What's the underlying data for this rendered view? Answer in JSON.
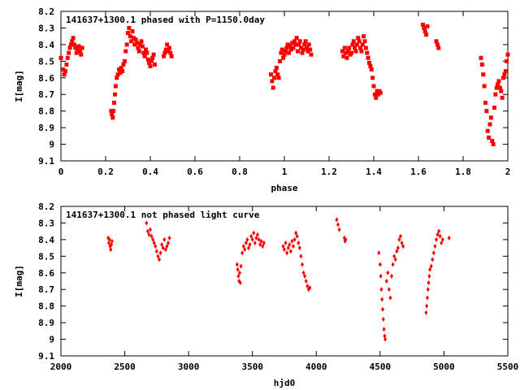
{
  "chart_data": [
    {
      "type": "scatter",
      "title": "141637+1300.1 phased with P=1150.0day",
      "xlabel": "phase",
      "ylabel": "I[mag]",
      "xlim": [
        0,
        2
      ],
      "ylim": [
        8.2,
        9.1
      ],
      "y_inverted": true,
      "xticks": [
        "0",
        "0.2",
        "0.4",
        "0.6",
        "0.8",
        "1",
        "1.2",
        "1.4",
        "1.6",
        "1.8",
        "2"
      ],
      "yticks": [
        "8.2",
        "8.3",
        "8.4",
        "8.5",
        "8.6",
        "8.7",
        "8.8",
        "8.9",
        "9",
        "9.1"
      ],
      "marker": "square",
      "marker_color": "#ff0000",
      "grid": false,
      "x": [
        0.0,
        0.01,
        0.015,
        0.02,
        0.025,
        0.03,
        0.035,
        0.04,
        0.045,
        0.05,
        0.055,
        0.06,
        0.065,
        0.07,
        0.075,
        0.08,
        0.085,
        0.09,
        0.095,
        0.225,
        0.228,
        0.232,
        0.235,
        0.238,
        0.242,
        0.245,
        0.25,
        0.255,
        0.26,
        0.265,
        0.27,
        0.275,
        0.28,
        0.285,
        0.29,
        0.295,
        0.3,
        0.305,
        0.31,
        0.315,
        0.32,
        0.325,
        0.33,
        0.335,
        0.34,
        0.345,
        0.35,
        0.355,
        0.36,
        0.365,
        0.37,
        0.375,
        0.38,
        0.385,
        0.39,
        0.395,
        0.4,
        0.405,
        0.41,
        0.415,
        0.42,
        0.46,
        0.465,
        0.47,
        0.475,
        0.48,
        0.485,
        0.49,
        0.495,
        0.94,
        0.945,
        0.95,
        0.955,
        0.96,
        0.965,
        0.97,
        0.975,
        0.98,
        0.985,
        0.99,
        0.995,
        1.0,
        1.005,
        1.01,
        1.015,
        1.02,
        1.025,
        1.03,
        1.035,
        1.04,
        1.045,
        1.05,
        1.055,
        1.06,
        1.065,
        1.07,
        1.075,
        1.08,
        1.085,
        1.09,
        1.095,
        1.1,
        1.105,
        1.11,
        1.115,
        1.12,
        1.26,
        1.265,
        1.27,
        1.275,
        1.28,
        1.285,
        1.29,
        1.295,
        1.3,
        1.305,
        1.31,
        1.315,
        1.32,
        1.325,
        1.33,
        1.335,
        1.34,
        1.345,
        1.35,
        1.355,
        1.36,
        1.365,
        1.37,
        1.375,
        1.38,
        1.385,
        1.39,
        1.395,
        1.4,
        1.405,
        1.41,
        1.415,
        1.42,
        1.425,
        1.43,
        1.62,
        1.625,
        1.63,
        1.635,
        1.64,
        1.68,
        1.685,
        1.69,
        1.88,
        1.885,
        1.89,
        1.895,
        1.9,
        1.905,
        1.91,
        1.915,
        1.92,
        1.925,
        1.93,
        1.935,
        1.94,
        1.945,
        1.95,
        1.955,
        1.96,
        1.965,
        1.97,
        1.975,
        1.98,
        1.985,
        1.99,
        1.995,
        2.0
      ],
      "y": [
        8.48,
        8.55,
        8.58,
        8.56,
        8.52,
        8.48,
        8.45,
        8.42,
        8.4,
        8.38,
        8.36,
        8.4,
        8.42,
        8.45,
        8.43,
        8.41,
        8.44,
        8.46,
        8.42,
        8.8,
        8.82,
        8.84,
        8.8,
        8.75,
        8.7,
        8.65,
        8.6,
        8.58,
        8.55,
        8.57,
        8.54,
        8.56,
        8.52,
        8.5,
        8.44,
        8.4,
        8.33,
        8.3,
        8.35,
        8.38,
        8.32,
        8.36,
        8.4,
        8.37,
        8.39,
        8.42,
        8.44,
        8.4,
        8.38,
        8.41,
        8.45,
        8.47,
        8.43,
        8.45,
        8.49,
        8.51,
        8.53,
        8.5,
        8.48,
        8.46,
        8.52,
        8.47,
        8.45,
        8.43,
        8.4,
        8.44,
        8.42,
        8.45,
        8.47,
        8.58,
        8.62,
        8.66,
        8.6,
        8.56,
        8.54,
        8.58,
        8.6,
        8.5,
        8.45,
        8.43,
        8.48,
        8.46,
        8.44,
        8.42,
        8.4,
        8.45,
        8.41,
        8.43,
        8.39,
        8.42,
        8.38,
        8.4,
        8.36,
        8.44,
        8.4,
        8.38,
        8.42,
        8.45,
        8.43,
        8.4,
        8.38,
        8.42,
        8.44,
        8.4,
        8.43,
        8.46,
        8.44,
        8.47,
        8.42,
        8.45,
        8.48,
        8.44,
        8.42,
        8.46,
        8.45,
        8.4,
        8.38,
        8.42,
        8.44,
        8.4,
        8.36,
        8.38,
        8.42,
        8.44,
        8.4,
        8.35,
        8.38,
        8.42,
        8.45,
        8.48,
        8.51,
        8.53,
        8.55,
        8.6,
        8.65,
        8.7,
        8.72,
        8.68,
        8.7,
        8.68,
        8.69,
        8.28,
        8.3,
        8.32,
        8.34,
        8.29,
        8.38,
        8.4,
        8.42,
        8.48,
        8.52,
        8.58,
        8.65,
        8.75,
        8.8,
        8.92,
        8.96,
        8.88,
        8.84,
        8.98,
        9.0,
        8.78,
        8.7,
        8.66,
        8.64,
        8.62,
        8.66,
        8.68,
        8.72,
        8.6,
        8.58,
        8.56,
        8.5,
        8.46
      ]
    },
    {
      "type": "scatter",
      "title": "141637+1300.1 not phased light curve",
      "xlabel": "hjd0",
      "ylabel": "I[mag]",
      "xlim": [
        2000,
        5500
      ],
      "ylim": [
        8.2,
        9.1
      ],
      "y_inverted": true,
      "xticks": [
        "2000",
        "2500",
        "3000",
        "3500",
        "4000",
        "4500",
        "5000",
        "5500"
      ],
      "yticks": [
        "8.2",
        "8.3",
        "8.4",
        "8.5",
        "8.6",
        "8.7",
        "8.8",
        "8.9",
        "9",
        "9.1"
      ],
      "marker": "diamond",
      "marker_color": "#ff0000",
      "grid": false,
      "x": [
        2370,
        2375,
        2380,
        2385,
        2390,
        2395,
        2400,
        2670,
        2680,
        2690,
        2700,
        2710,
        2720,
        2730,
        2740,
        2750,
        2760,
        2770,
        2780,
        2790,
        2800,
        2810,
        2820,
        2830,
        2840,
        2850,
        3380,
        3385,
        3390,
        3395,
        3400,
        3405,
        3410,
        3420,
        3430,
        3440,
        3450,
        3460,
        3470,
        3480,
        3490,
        3500,
        3510,
        3520,
        3530,
        3540,
        3550,
        3560,
        3570,
        3580,
        3590,
        3740,
        3750,
        3760,
        3770,
        3780,
        3790,
        3800,
        3810,
        3820,
        3830,
        3840,
        3850,
        3860,
        3870,
        3880,
        3890,
        3900,
        3910,
        3920,
        3930,
        3940,
        3950,
        4160,
        4170,
        4180,
        4220,
        4225,
        4230,
        4490,
        4500,
        4505,
        4510,
        4515,
        4520,
        4525,
        4530,
        4535,
        4540,
        4550,
        4560,
        4570,
        4580,
        4590,
        4600,
        4610,
        4620,
        4630,
        4640,
        4650,
        4660,
        4670,
        4680,
        4860,
        4865,
        4870,
        4875,
        4880,
        4885,
        4890,
        4900,
        4910,
        4920,
        4930,
        4940,
        4950,
        4960,
        4970,
        4980,
        4990,
        5040
      ],
      "y": [
        8.39,
        8.42,
        8.4,
        8.44,
        8.46,
        8.43,
        8.41,
        8.3,
        8.35,
        8.37,
        8.34,
        8.38,
        8.4,
        8.42,
        8.44,
        8.47,
        8.5,
        8.52,
        8.48,
        8.43,
        8.45,
        8.4,
        8.46,
        8.44,
        8.42,
        8.39,
        8.55,
        8.58,
        8.62,
        8.65,
        8.6,
        8.66,
        8.56,
        8.48,
        8.44,
        8.46,
        8.42,
        8.4,
        8.45,
        8.43,
        8.38,
        8.4,
        8.36,
        8.42,
        8.39,
        8.37,
        8.4,
        8.43,
        8.41,
        8.44,
        8.42,
        8.44,
        8.46,
        8.42,
        8.48,
        8.45,
        8.43,
        8.47,
        8.41,
        8.44,
        8.4,
        8.36,
        8.38,
        8.42,
        8.45,
        8.5,
        8.55,
        8.6,
        8.62,
        8.65,
        8.68,
        8.7,
        8.69,
        8.28,
        8.31,
        8.34,
        8.39,
        8.41,
        8.4,
        8.48,
        8.55,
        8.62,
        8.7,
        8.76,
        8.82,
        8.88,
        8.94,
        8.98,
        9.0,
        8.65,
        8.6,
        8.7,
        8.75,
        8.62,
        8.55,
        8.5,
        8.52,
        8.47,
        8.45,
        8.4,
        8.38,
        8.42,
        8.44,
        8.84,
        8.8,
        8.75,
        8.7,
        8.66,
        8.62,
        8.58,
        8.56,
        8.52,
        8.48,
        8.44,
        8.4,
        8.37,
        8.35,
        8.38,
        8.42,
        8.4,
        8.39
      ]
    }
  ]
}
